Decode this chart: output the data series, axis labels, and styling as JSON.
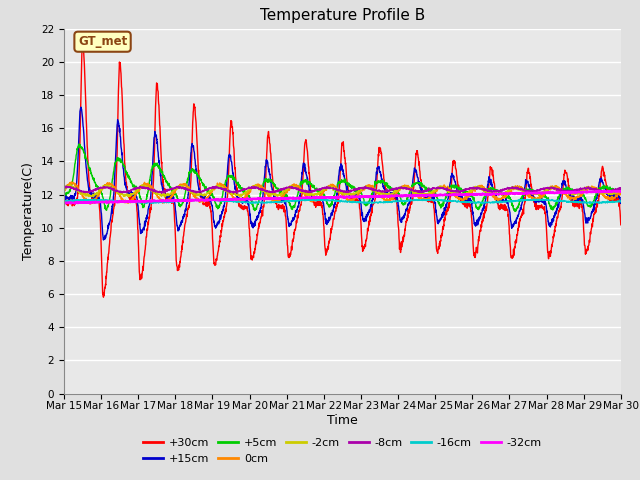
{
  "title": "Temperature Profile B",
  "xlabel": "Time",
  "ylabel": "Temperature(C)",
  "annotation": "GT_met",
  "ylim": [
    0,
    22
  ],
  "yticks": [
    0,
    2,
    4,
    6,
    8,
    10,
    12,
    14,
    16,
    18,
    20,
    22
  ],
  "date_labels": [
    "Mar 15",
    "Mar 16",
    "Mar 17",
    "Mar 18",
    "Mar 19",
    "Mar 20",
    "Mar 21",
    "Mar 22",
    "Mar 23",
    "Mar 24",
    "Mar 25",
    "Mar 26",
    "Mar 27",
    "Mar 28",
    "Mar 29",
    "Mar 30"
  ],
  "series": [
    {
      "label": "+30cm",
      "color": "#FF0000",
      "lw": 1.0
    },
    {
      "label": "+15cm",
      "color": "#0000CC",
      "lw": 1.0
    },
    {
      "label": "+5cm",
      "color": "#00CC00",
      "lw": 1.0
    },
    {
      "label": "0cm",
      "color": "#FF8800",
      "lw": 1.0
    },
    {
      "label": "-2cm",
      "color": "#CCCC00",
      "lw": 1.0
    },
    {
      "label": "-8cm",
      "color": "#AA00AA",
      "lw": 1.0
    },
    {
      "label": "-16cm",
      "color": "#00CCCC",
      "lw": 1.0
    },
    {
      "label": "-32cm",
      "color": "#FF00FF",
      "lw": 1.5
    }
  ],
  "bg_color": "#E0E0E0",
  "plot_bg_color": "#E8E8E8",
  "title_fontsize": 11,
  "axis_label_fontsize": 9,
  "tick_fontsize": 7.5
}
